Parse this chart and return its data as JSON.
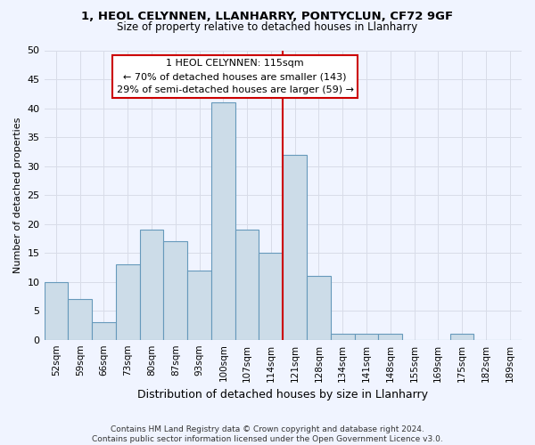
{
  "title1": "1, HEOL CELYNNEN, LLANHARRY, PONTYCLUN, CF72 9GF",
  "title2": "Size of property relative to detached houses in Llanharry",
  "xlabel": "Distribution of detached houses by size in Llanharry",
  "ylabel": "Number of detached properties",
  "categories": [
    "52sqm",
    "59sqm",
    "66sqm",
    "73sqm",
    "80sqm",
    "87sqm",
    "93sqm",
    "100sqm",
    "107sqm",
    "114sqm",
    "121sqm",
    "128sqm",
    "134sqm",
    "141sqm",
    "148sqm",
    "155sqm",
    "169sqm",
    "175sqm",
    "182sqm",
    "189sqm"
  ],
  "values": [
    10,
    7,
    3,
    13,
    19,
    17,
    12,
    41,
    19,
    15,
    32,
    11,
    1,
    1,
    1,
    0,
    0,
    1,
    0,
    0
  ],
  "bar_color": "#ccdce8",
  "bar_edge_color": "#6699bb",
  "vline_x": 9.5,
  "vline_color": "#cc0000",
  "annotation_text": "1 HEOL CELYNNEN: 115sqm\n← 70% of detached houses are smaller (143)\n29% of semi-detached houses are larger (59) →",
  "footer": "Contains HM Land Registry data © Crown copyright and database right 2024.\nContains public sector information licensed under the Open Government Licence v3.0.",
  "ylim": [
    0,
    50
  ],
  "yticks": [
    0,
    5,
    10,
    15,
    20,
    25,
    30,
    35,
    40,
    45,
    50
  ],
  "grid_color": "#d8dce8",
  "bg_color": "#f0f4ff",
  "title_fontsize": 9.5,
  "subtitle_fontsize": 8.5
}
